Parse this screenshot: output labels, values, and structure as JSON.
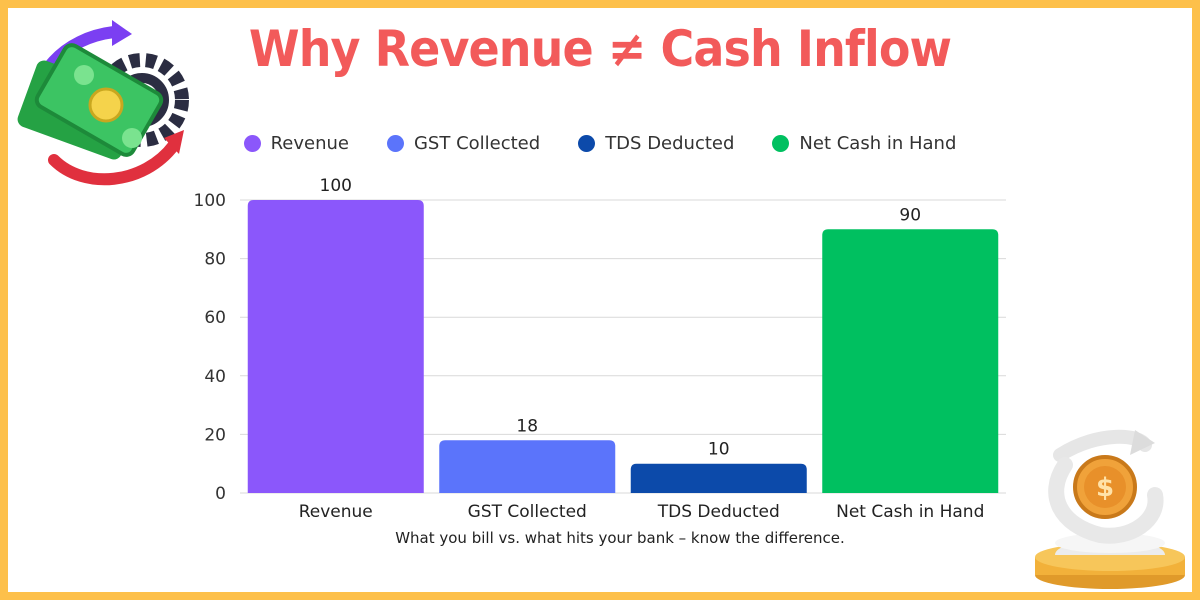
{
  "chart_data": {
    "type": "bar",
    "title": "Why Revenue ≠ Cash Inflow",
    "subtitle": "What you bill vs. what hits your bank – know the difference.",
    "categories": [
      "Revenue",
      "GST Collected",
      "TDS Deducted",
      "Net Cash in Hand"
    ],
    "values": [
      100,
      18,
      10,
      90
    ],
    "colors": [
      "#8b57fb",
      "#5b74fb",
      "#0c4aaa",
      "#00c060"
    ],
    "legend": [
      "Revenue",
      "GST Collected",
      "TDS Deducted",
      "Net Cash in Hand"
    ],
    "legend_position": "top-center",
    "yticks": [
      0,
      20,
      40,
      60,
      80,
      100
    ],
    "ylim": [
      0,
      100
    ],
    "grid": true,
    "xlabel": "",
    "ylabel": ""
  },
  "decorations": {
    "top_left": "money-cycle-icon",
    "bottom_right": "coin-growth-icon"
  },
  "colors": {
    "border": "#fdc04a",
    "title": "#f25a5a",
    "background": "#ffffff"
  }
}
